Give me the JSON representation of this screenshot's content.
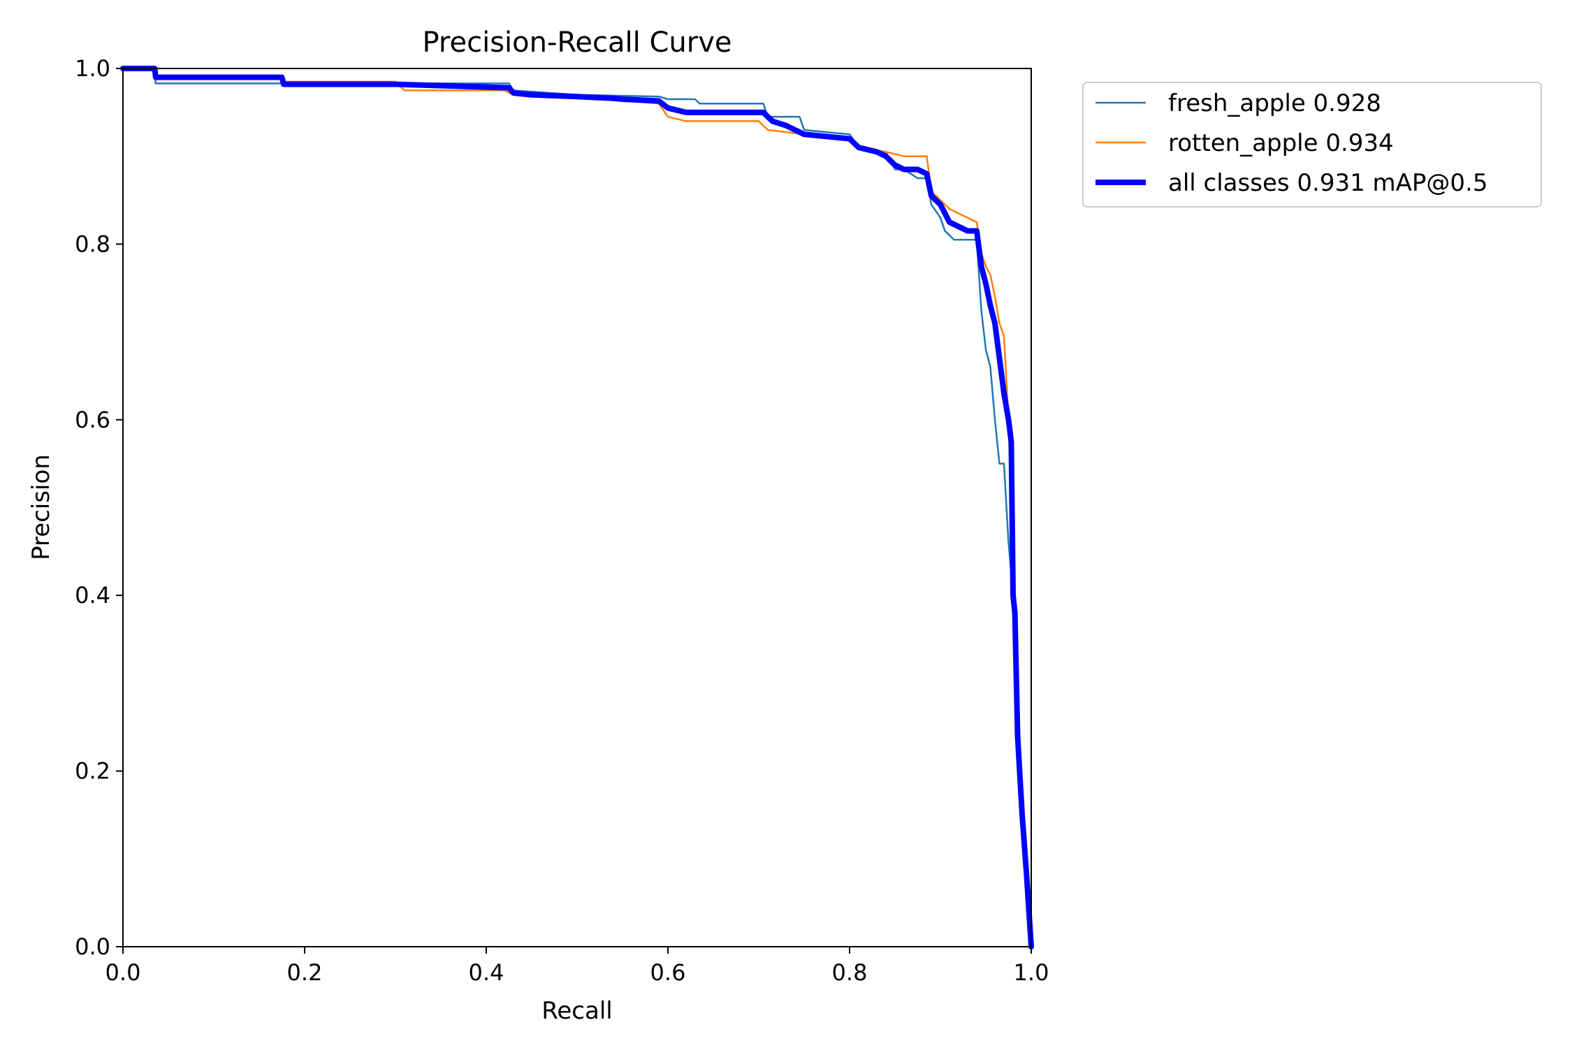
{
  "chart_data": {
    "type": "line",
    "title": "Precision-Recall Curve",
    "xlabel": "Recall",
    "ylabel": "Precision",
    "xlim": [
      0,
      1
    ],
    "ylim": [
      0,
      1
    ],
    "xticks": [
      "0.0",
      "0.2",
      "0.4",
      "0.6",
      "0.8",
      "1.0"
    ],
    "yticks": [
      "0.0",
      "0.2",
      "0.4",
      "0.6",
      "0.8",
      "1.0"
    ],
    "grid": false,
    "legend_position": "outside-top-right",
    "series": [
      {
        "name": "fresh_apple 0.928",
        "color": "#1f77b4",
        "style": "thin",
        "x": [
          0.0,
          0.035,
          0.036,
          0.175,
          0.177,
          0.425,
          0.43,
          0.5,
          0.59,
          0.6,
          0.63,
          0.635,
          0.705,
          0.71,
          0.745,
          0.75,
          0.8,
          0.81,
          0.84,
          0.85,
          0.86,
          0.875,
          0.885,
          0.89,
          0.9,
          0.905,
          0.915,
          0.93,
          0.94,
          0.945,
          0.95,
          0.955,
          0.96,
          0.965,
          0.97,
          0.975,
          0.98,
          0.982,
          0.985,
          0.99,
          0.995,
          1.0
        ],
        "y": [
          1.0,
          1.0,
          0.983,
          0.983,
          0.983,
          0.983,
          0.975,
          0.97,
          0.968,
          0.965,
          0.965,
          0.96,
          0.96,
          0.945,
          0.945,
          0.93,
          0.925,
          0.91,
          0.905,
          0.885,
          0.885,
          0.875,
          0.875,
          0.845,
          0.83,
          0.815,
          0.805,
          0.805,
          0.805,
          0.725,
          0.68,
          0.66,
          0.6,
          0.55,
          0.55,
          0.46,
          0.4,
          0.38,
          0.24,
          0.15,
          0.08,
          0.0
        ]
      },
      {
        "name": "rotten_apple 0.934",
        "color": "#ff7f0e",
        "style": "thin",
        "x": [
          0.0,
          0.035,
          0.036,
          0.175,
          0.177,
          0.3,
          0.31,
          0.42,
          0.43,
          0.5,
          0.59,
          0.6,
          0.62,
          0.7,
          0.71,
          0.75,
          0.8,
          0.81,
          0.84,
          0.86,
          0.885,
          0.89,
          0.9,
          0.91,
          0.92,
          0.93,
          0.94,
          0.945,
          0.95,
          0.955,
          0.96,
          0.965,
          0.97,
          0.975,
          0.978,
          0.98,
          0.982,
          0.985,
          0.99,
          0.995,
          1.0
        ],
        "y": [
          1.0,
          1.0,
          0.99,
          0.99,
          0.985,
          0.985,
          0.975,
          0.975,
          0.97,
          0.968,
          0.96,
          0.945,
          0.94,
          0.94,
          0.93,
          0.925,
          0.92,
          0.91,
          0.905,
          0.9,
          0.9,
          0.86,
          0.85,
          0.84,
          0.835,
          0.83,
          0.825,
          0.79,
          0.775,
          0.765,
          0.74,
          0.71,
          0.695,
          0.6,
          0.5,
          0.4,
          0.38,
          0.24,
          0.15,
          0.08,
          0.0
        ]
      },
      {
        "name": "all classes 0.931 mAP@0.5",
        "color": "#0000ff",
        "style": "thick",
        "x": [
          0.0,
          0.035,
          0.036,
          0.175,
          0.177,
          0.3,
          0.425,
          0.43,
          0.45,
          0.5,
          0.54,
          0.55,
          0.59,
          0.6,
          0.62,
          0.705,
          0.715,
          0.73,
          0.75,
          0.8,
          0.81,
          0.83,
          0.84,
          0.85,
          0.86,
          0.875,
          0.885,
          0.89,
          0.9,
          0.905,
          0.91,
          0.92,
          0.93,
          0.94,
          0.945,
          0.95,
          0.955,
          0.96,
          0.965,
          0.97,
          0.975,
          0.978,
          0.98,
          0.982,
          0.985,
          0.99,
          0.995,
          1.0
        ],
        "y": [
          1.0,
          1.0,
          0.99,
          0.99,
          0.982,
          0.982,
          0.978,
          0.972,
          0.97,
          0.968,
          0.966,
          0.965,
          0.963,
          0.955,
          0.95,
          0.95,
          0.94,
          0.935,
          0.925,
          0.92,
          0.91,
          0.905,
          0.9,
          0.89,
          0.885,
          0.885,
          0.88,
          0.855,
          0.845,
          0.835,
          0.825,
          0.82,
          0.815,
          0.815,
          0.775,
          0.755,
          0.73,
          0.71,
          0.67,
          0.63,
          0.6,
          0.575,
          0.4,
          0.38,
          0.24,
          0.15,
          0.08,
          0.0
        ]
      }
    ]
  }
}
